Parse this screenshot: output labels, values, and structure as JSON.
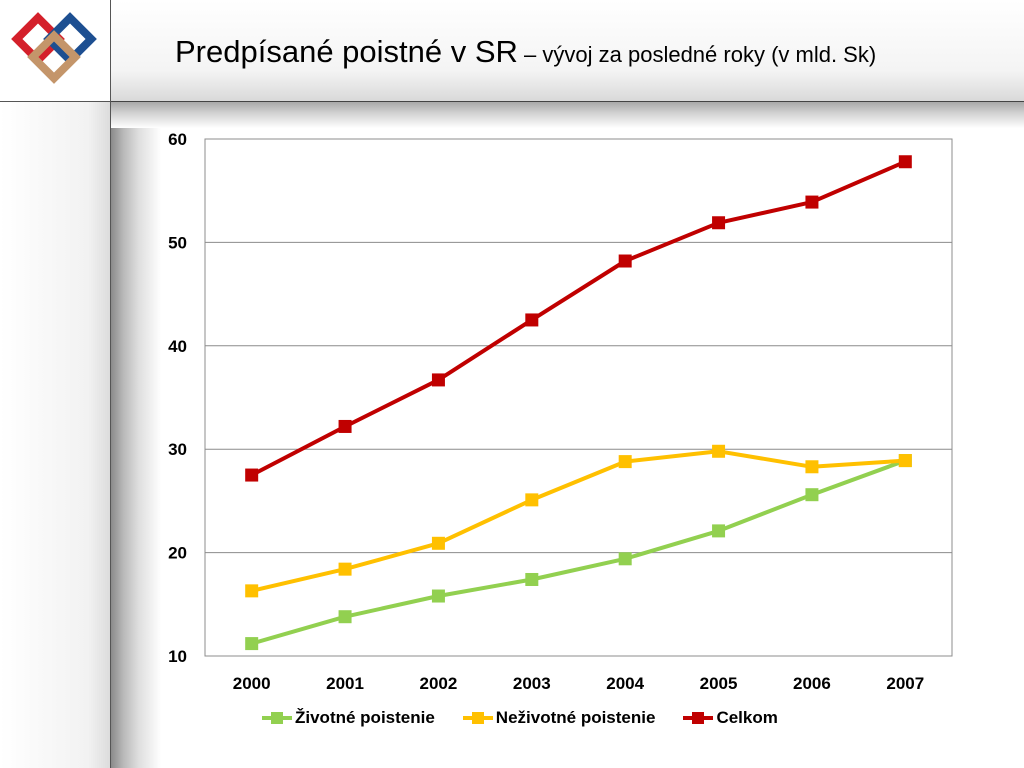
{
  "header": {
    "title_main": "Predpísané poistné v SR",
    "title_sub": " – vývoj za posledné roky (v mld. Sk)"
  },
  "logo": {
    "colors": [
      "#d4202b",
      "#1d4f91",
      "#c4956a"
    ]
  },
  "chart_data": {
    "type": "line",
    "title": "Predpísané poistné v SR – vývoj za posledné roky (v mld. Sk)",
    "xlabel": "",
    "ylabel": "",
    "categories": [
      "2000",
      "2001",
      "2002",
      "2003",
      "2004",
      "2005",
      "2006",
      "2007"
    ],
    "ylim": [
      10,
      60
    ],
    "yticks": [
      10,
      20,
      30,
      40,
      50,
      60
    ],
    "grid": true,
    "legend_position": "bottom",
    "series": [
      {
        "name": "Životné poistenie",
        "color": "#92d050",
        "values": [
          11.2,
          13.8,
          15.8,
          17.4,
          19.4,
          22.1,
          25.6,
          28.9
        ]
      },
      {
        "name": "Neživotné poistenie",
        "color": "#ffc000",
        "values": [
          16.3,
          18.4,
          20.9,
          25.1,
          28.8,
          29.8,
          28.3,
          28.9
        ]
      },
      {
        "name": "Celkom",
        "color": "#c00000",
        "values": [
          27.5,
          32.2,
          36.7,
          42.5,
          48.2,
          51.9,
          53.9,
          57.8
        ]
      }
    ]
  }
}
